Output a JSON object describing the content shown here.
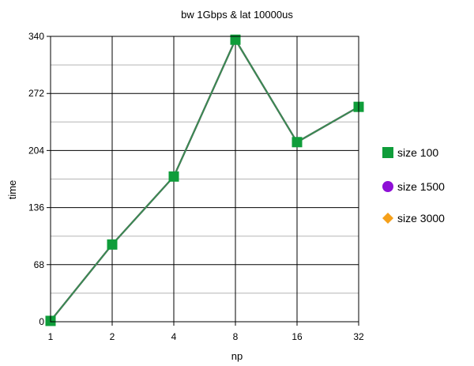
{
  "chart_data": {
    "type": "line",
    "title": "bw 1Gbps & lat 10000us",
    "xlabel": "np",
    "ylabel": "time",
    "categories": [
      "1",
      "2",
      "4",
      "8",
      "16",
      "32"
    ],
    "ylim": [
      0,
      340
    ],
    "yticks": [
      0,
      68,
      136,
      204,
      272,
      340
    ],
    "grid": true,
    "minor_grid": true,
    "legend_position": "right",
    "series": [
      {
        "name": "size 100",
        "marker": "square",
        "color": "#0f9d3a",
        "line_color": "#3a8a52",
        "values": [
          1,
          92,
          173,
          336,
          214,
          256
        ]
      },
      {
        "name": "size 1500",
        "marker": "circle",
        "color": "#8e10d6",
        "line_color": "#8e10d6",
        "values": [
          1,
          92,
          173,
          336,
          214,
          256
        ]
      },
      {
        "name": "size 3000",
        "marker": "diamond",
        "color": "#f5a01a",
        "line_color": "#f5a01a",
        "values": [
          1,
          92,
          173,
          336,
          214,
          256
        ]
      }
    ]
  }
}
